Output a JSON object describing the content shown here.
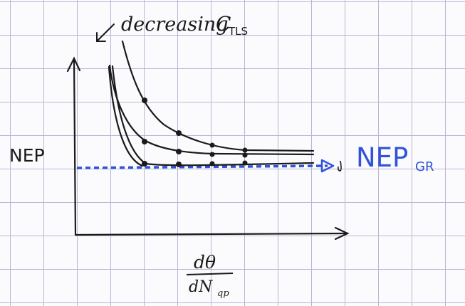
{
  "diagram": {
    "ylabel": "NEP",
    "annotation": "decreasing",
    "annotation_symbol": "C",
    "annotation_sub": "TLS",
    "xlabel_numerator": "dθ",
    "xlabel_denominator": "dN",
    "xlabel_denominator_sub": "qp",
    "reference_label": "NEP",
    "reference_sub": "GR",
    "colors": {
      "ink": "#1a1a1a",
      "reference": "#2f54d8",
      "grid": "#b9b5d6"
    }
  }
}
